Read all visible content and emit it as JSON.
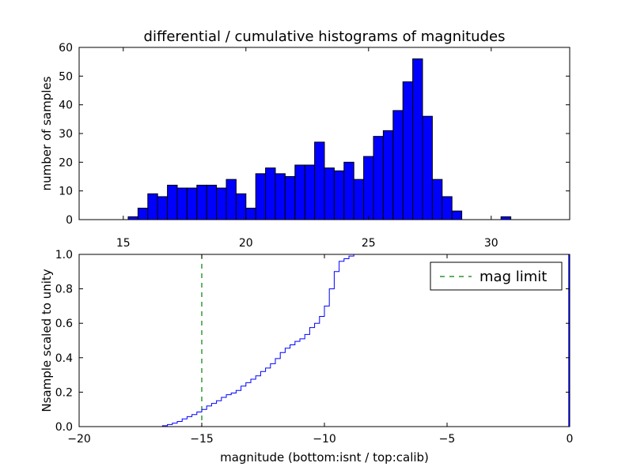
{
  "colors": {
    "bar_fill": "#0000ff",
    "cdf_line": "#0000ff",
    "mag_limit_line": "#008000",
    "axes": "#000000",
    "background": "#ffffff"
  },
  "chart_data": [
    {
      "type": "bar",
      "title": "differential / cumulative histograms of magnitudes",
      "xlabel": "",
      "ylabel": "number of samples",
      "xlim": [
        13.2,
        33.2
      ],
      "ylim": [
        0,
        60
      ],
      "xticks": [
        15,
        20,
        25,
        30
      ],
      "yticks": [
        0,
        10,
        20,
        30,
        40,
        50,
        60
      ],
      "bin_width": 0.4,
      "bin_starts": [
        15.2,
        15.6,
        16.0,
        16.4,
        16.8,
        17.2,
        17.6,
        18.0,
        18.4,
        18.8,
        19.2,
        19.6,
        20.0,
        20.4,
        20.8,
        21.2,
        21.6,
        22.0,
        22.4,
        22.8,
        23.2,
        23.6,
        24.0,
        24.4,
        24.8,
        25.2,
        25.6,
        26.0,
        26.4,
        26.8,
        27.2,
        27.6,
        28.0,
        28.4,
        28.8,
        29.2,
        29.6,
        30.0,
        30.4
      ],
      "values": [
        1,
        4,
        9,
        8,
        12,
        11,
        11,
        12,
        12,
        11,
        14,
        9,
        4,
        16,
        18,
        16,
        15,
        19,
        19,
        27,
        18,
        17,
        20,
        14,
        22,
        29,
        31,
        38,
        48,
        56,
        36,
        14,
        8,
        3,
        0,
        0,
        0,
        0,
        1
      ]
    },
    {
      "type": "line",
      "title": "",
      "xlabel": "magnitude (bottom:isnt / top:calib)",
      "ylabel": "Nsample scaled to unity",
      "xlim": [
        -20,
        0
      ],
      "ylim": [
        0.0,
        1.0
      ],
      "xticks": [
        -20,
        -15,
        -10,
        -5,
        0
      ],
      "yticks": [
        "0.0",
        "0.2",
        "0.4",
        "0.6",
        "0.8",
        "1.0"
      ],
      "series": [
        {
          "name": "cumulative",
          "step": true,
          "x": [
            -20.0,
            -16.6,
            -16.4,
            -16.2,
            -16.0,
            -15.8,
            -15.6,
            -15.4,
            -15.2,
            -15.0,
            -14.8,
            -14.6,
            -14.4,
            -14.2,
            -14.0,
            -13.8,
            -13.6,
            -13.4,
            -13.2,
            -13.0,
            -12.8,
            -12.6,
            -12.4,
            -12.2,
            -12.0,
            -11.8,
            -11.6,
            -11.4,
            -11.2,
            -11.0,
            -10.8,
            -10.6,
            -10.4,
            -10.2,
            -10.0,
            -9.8,
            -9.6,
            -9.4,
            -9.2,
            -9.0,
            -8.8,
            -8.6,
            -8.4
          ],
          "y": [
            0.0,
            0.005,
            0.012,
            0.02,
            0.03,
            0.045,
            0.058,
            0.07,
            0.085,
            0.1,
            0.12,
            0.135,
            0.15,
            0.17,
            0.185,
            0.195,
            0.21,
            0.235,
            0.255,
            0.275,
            0.295,
            0.32,
            0.34,
            0.365,
            0.395,
            0.43,
            0.455,
            0.475,
            0.495,
            0.51,
            0.535,
            0.575,
            0.6,
            0.64,
            0.7,
            0.8,
            0.9,
            0.96,
            0.975,
            0.99,
            1.0,
            1.0,
            1.0
          ]
        }
      ],
      "vline": {
        "x": -15,
        "style": "dashed",
        "label": "mag limit"
      },
      "legend": {
        "position": "top-right",
        "entries": [
          "mag limit"
        ]
      }
    }
  ]
}
